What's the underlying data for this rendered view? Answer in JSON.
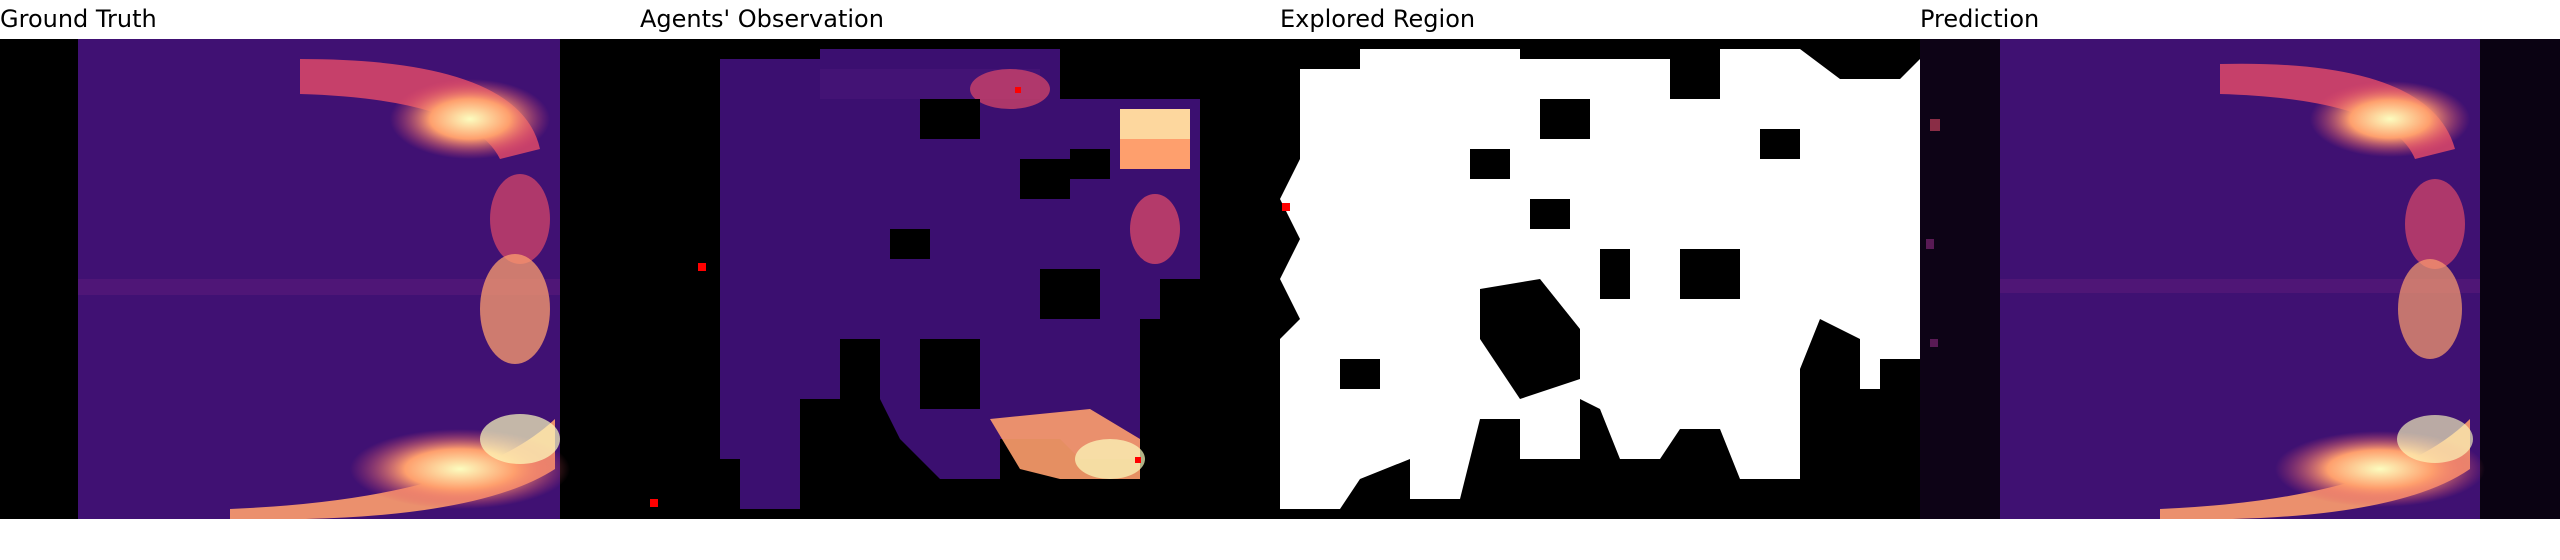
{
  "panels": [
    {
      "title": "Ground Truth"
    },
    {
      "title": "Agents' Observation"
    },
    {
      "title": "Explored Region"
    },
    {
      "title": "Prediction"
    }
  ],
  "colors": {
    "background": "#ffffff",
    "image_bg": "#000000",
    "field_base": "#3b0f70",
    "field_mid": "#8c2981",
    "field_warm": "#de4968",
    "field_hot": "#fe9f6d",
    "field_peak": "#fcfdbf",
    "explored": "#ffffff",
    "agent_marker": "#ff0000"
  }
}
